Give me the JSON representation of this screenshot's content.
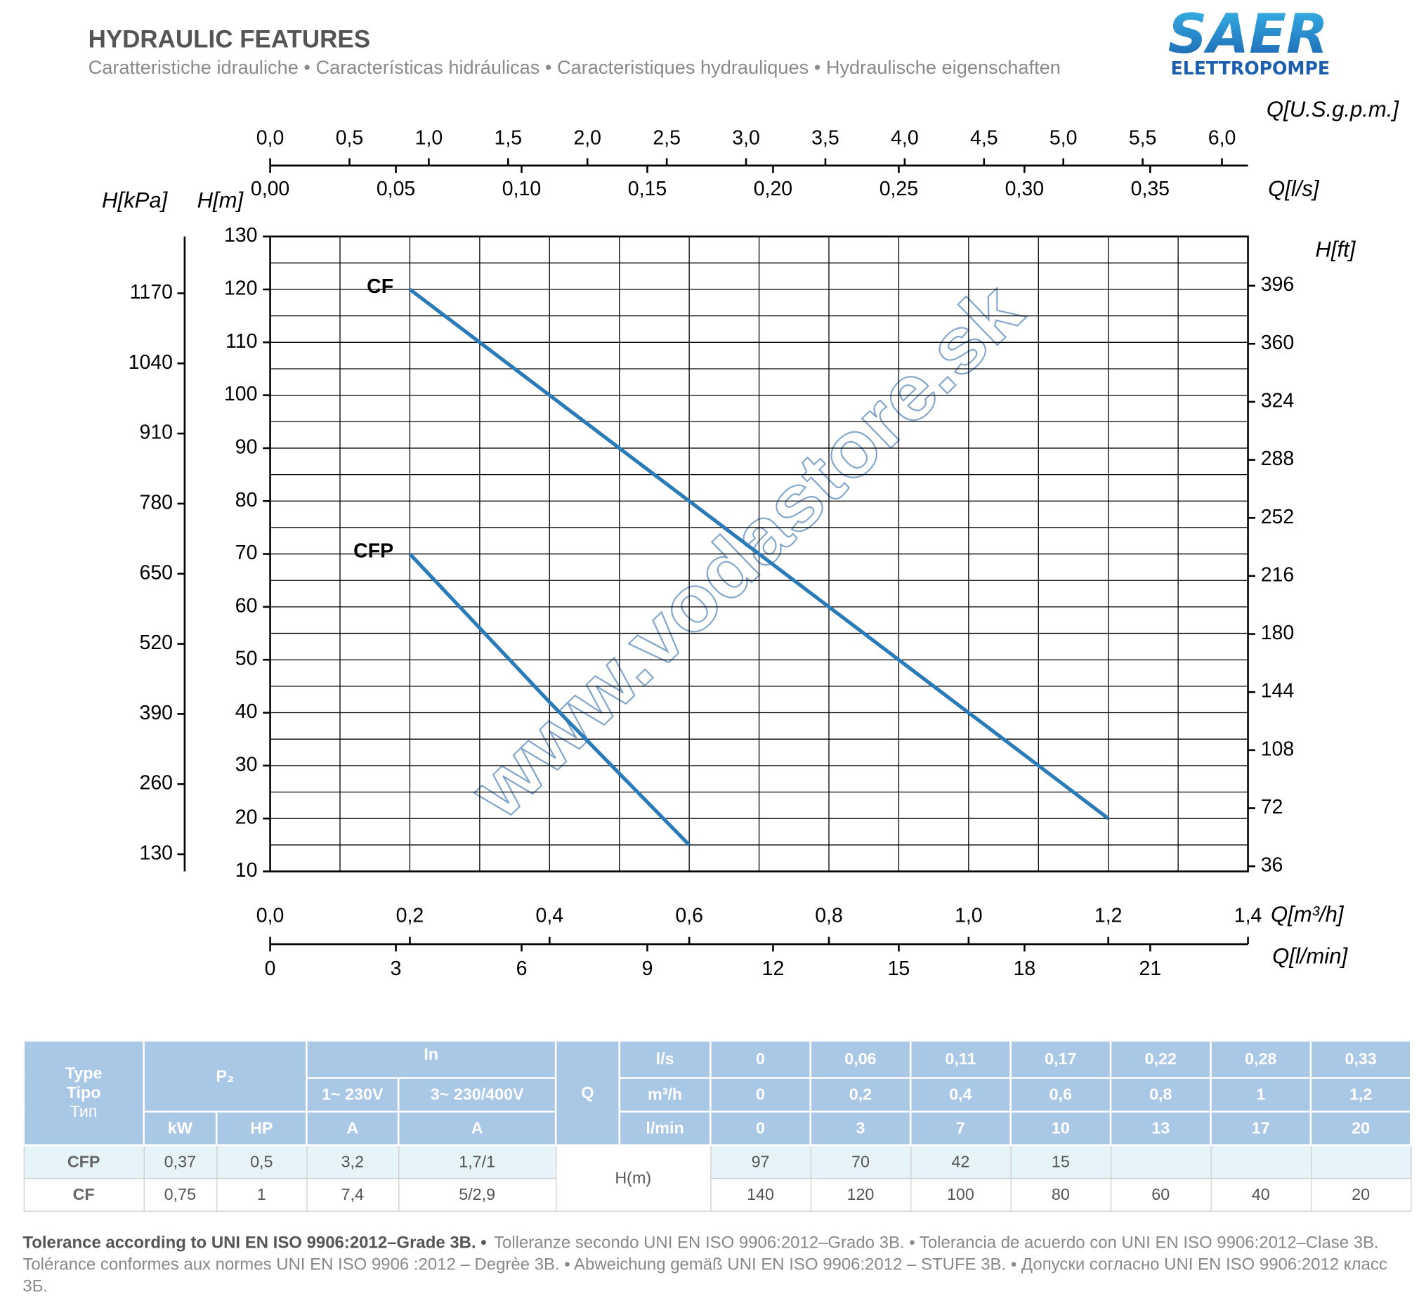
{
  "header": {
    "title": "HYDRAULIC FEATURES",
    "subtitle": "Caratteristiche idrauliche • Características hidráulicas • Caracteristiques hydrauliques • Hydraulische eigenschaften"
  },
  "logo": {
    "brand": "SAER",
    "tagline": "ELETTROPOMPE"
  },
  "watermark": "www.vodastore.sk",
  "chart_data": {
    "type": "line",
    "x_label": "Q[m³/h]",
    "y_label": "H[m]",
    "xlim": [
      0,
      1.4
    ],
    "xticks": [
      {
        "value": 0,
        "label": "0,0"
      },
      {
        "value": 0.2,
        "label": "0,2"
      },
      {
        "value": 0.4,
        "label": "0,4"
      },
      {
        "value": 0.6,
        "label": "0,6"
      },
      {
        "value": 0.8,
        "label": "0,8"
      },
      {
        "value": 1.0,
        "label": "1,0"
      },
      {
        "value": 1.2,
        "label": "1,2"
      },
      {
        "value": 1.4,
        "label": "1,4"
      }
    ],
    "ylim": [
      10,
      130
    ],
    "yticks": [
      10,
      20,
      30,
      40,
      50,
      60,
      70,
      80,
      90,
      100,
      110,
      120,
      130
    ],
    "grid": true,
    "xgrid_step": 0.1,
    "ygrid_step": 5,
    "secondary_axes": [
      {
        "label": "H[kPa]",
        "side": "left",
        "lim": [
          98.1,
          1275.3
        ],
        "ticks": [
          130,
          260,
          390,
          520,
          650,
          780,
          910,
          1040,
          1170
        ]
      },
      {
        "label": "H[ft]",
        "side": "right",
        "lim": [
          32.8,
          426.5
        ],
        "ticks": [
          36,
          72,
          108,
          144,
          180,
          216,
          252,
          288,
          324,
          360,
          396
        ]
      },
      {
        "label": "Q[U.S.g.p.m.]",
        "side": "top",
        "lim": [
          0,
          6.164
        ],
        "ticks": [
          {
            "value": 0,
            "label": "0,0"
          },
          {
            "value": 0.5,
            "label": "0,5"
          },
          {
            "value": 1,
            "label": "1,0"
          },
          {
            "value": 1.5,
            "label": "1,5"
          },
          {
            "value": 2,
            "label": "2,0"
          },
          {
            "value": 2.5,
            "label": "2,5"
          },
          {
            "value": 3,
            "label": "3,0"
          },
          {
            "value": 3.5,
            "label": "3,5"
          },
          {
            "value": 4,
            "label": "4,0"
          },
          {
            "value": 4.5,
            "label": "4,5"
          },
          {
            "value": 5,
            "label": "5,0"
          },
          {
            "value": 5.5,
            "label": "5,5"
          },
          {
            "value": 6,
            "label": "6,0"
          }
        ]
      },
      {
        "label": "Q[l/s]",
        "side": "top-inner",
        "lim": [
          0,
          0.3889
        ],
        "ticks": [
          {
            "value": 0,
            "label": "0,00"
          },
          {
            "value": 0.05,
            "label": "0,05"
          },
          {
            "value": 0.1,
            "label": "0,10"
          },
          {
            "value": 0.15,
            "label": "0,15"
          },
          {
            "value": 0.2,
            "label": "0,20"
          },
          {
            "value": 0.25,
            "label": "0,25"
          },
          {
            "value": 0.3,
            "label": "0,30"
          },
          {
            "value": 0.35,
            "label": "0,35"
          }
        ]
      },
      {
        "label": "Q[l/min]",
        "side": "bottom",
        "lim": [
          0,
          23.333
        ],
        "ticks": [
          0,
          3,
          6,
          9,
          12,
          15,
          18,
          21
        ]
      }
    ],
    "series": [
      {
        "name": "CF",
        "color": "#2b7bb9",
        "x": [
          0.2,
          0.4,
          0.6,
          0.8,
          1.0,
          1.2
        ],
        "values": [
          120,
          100,
          80,
          60,
          40,
          20
        ]
      },
      {
        "name": "CFP",
        "color": "#2b7bb9",
        "x": [
          0.2,
          0.4,
          0.6
        ],
        "values": [
          70,
          42,
          15
        ]
      }
    ]
  },
  "table": {
    "type_header": [
      "Type",
      "Tipo",
      "Тип"
    ],
    "p2": "P₂",
    "in": "In",
    "in_cols": [
      "1~ 230V",
      "3~ 230/400V"
    ],
    "units": [
      "kW",
      "HP",
      "A",
      "A"
    ],
    "q": "Q",
    "flow_units": [
      "l/s",
      "m³/h",
      "l/min"
    ],
    "flow_values": [
      [
        "0",
        "0,06",
        "0,11",
        "0,17",
        "0,22",
        "0,28",
        "0,33"
      ],
      [
        "0",
        "0,2",
        "0,4",
        "0,6",
        "0,8",
        "1",
        "1,2"
      ],
      [
        "0",
        "3",
        "7",
        "10",
        "13",
        "17",
        "20"
      ]
    ],
    "head_label": "H(m)",
    "rows": [
      {
        "type": "CFP",
        "cells": [
          "0,37",
          "0,5",
          "3,2",
          "1,7/1"
        ],
        "heads": [
          "97",
          "70",
          "42",
          "15"
        ]
      },
      {
        "type": "CF",
        "cells": [
          "0,75",
          "1",
          "7,4",
          "5/2,9"
        ],
        "heads": [
          "140",
          "120",
          "100",
          "80",
          "60",
          "40",
          "20"
        ]
      }
    ]
  },
  "footer": {
    "bold": "Tolerance according to UNI EN ISO 9906:2012–Grade 3B. •",
    "text": "Tolleranze secondo UNI EN ISO 9906:2012–Grado 3B. • Tolerancia de acuerdo con UNI EN ISO 9906:2012–Clase 3B. Tolérance conformes aux normes UNI EN ISO 9906 :2012 – Degrèe 3B. • Abweichung gemäß UNI EN ISO 9906:2012 – STUFE 3B. • Допуски согласно UNI EN ISO 9906:2012 класс 3Б."
  }
}
